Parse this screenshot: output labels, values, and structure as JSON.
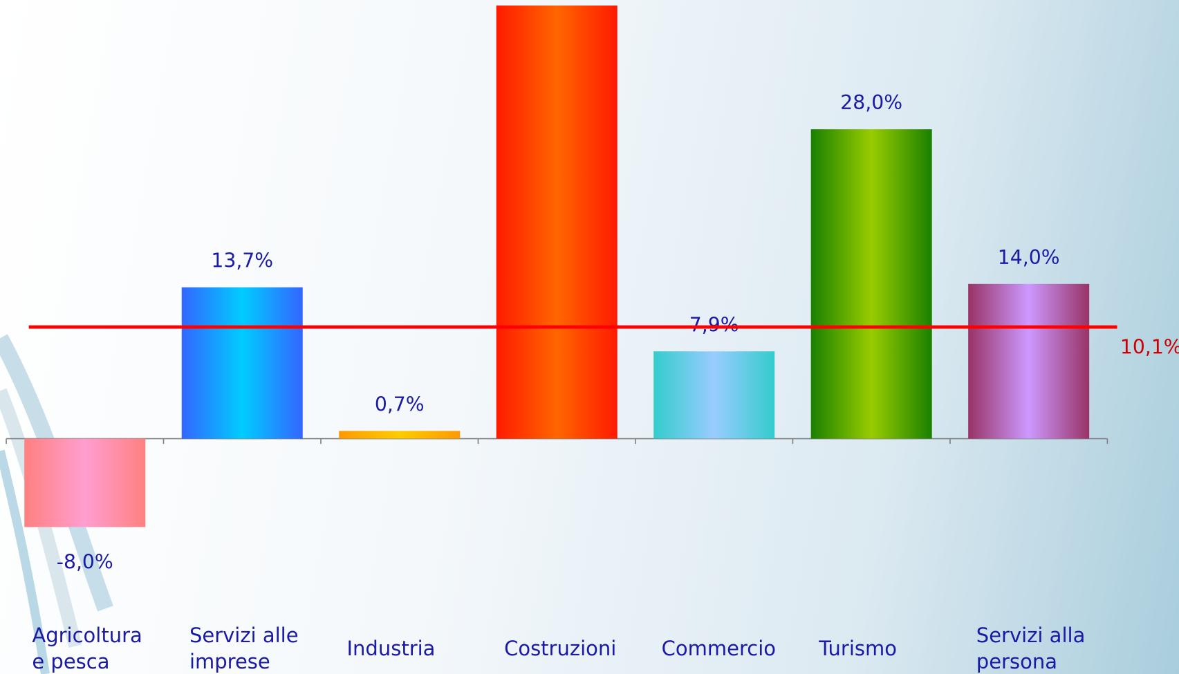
{
  "chart_data": {
    "type": "bar",
    "categories": [
      "Agricoltura e pesca",
      "Servizi alle imprese",
      "Industria",
      "Costruzioni",
      "Commercio",
      "Turismo",
      "Servizi alla persona"
    ],
    "values": [
      -8.0,
      13.7,
      0.7,
      39.2,
      7.9,
      28.0,
      14.0
    ],
    "value_labels": [
      "-8,0%",
      "13,7%",
      "0,7%",
      null,
      "7,9%",
      "28,0%",
      "14,0%"
    ],
    "colors": [
      [
        "#ff8080",
        "#ff9ed0"
      ],
      [
        "#3366ff",
        "#00ccff"
      ],
      [
        "#ff9900",
        "#ffcc00"
      ],
      [
        "#ff1a00",
        "#ff6600"
      ],
      [
        "#33cccc",
        "#99ccff"
      ],
      [
        "#1a8000",
        "#99cc00"
      ],
      [
        "#993366",
        "#cc99ff"
      ]
    ],
    "ylim": [
      -21.3,
      39.7
    ],
    "reference_line": {
      "value": 10.1,
      "label": "10,1%",
      "color": "#ff0000"
    }
  }
}
